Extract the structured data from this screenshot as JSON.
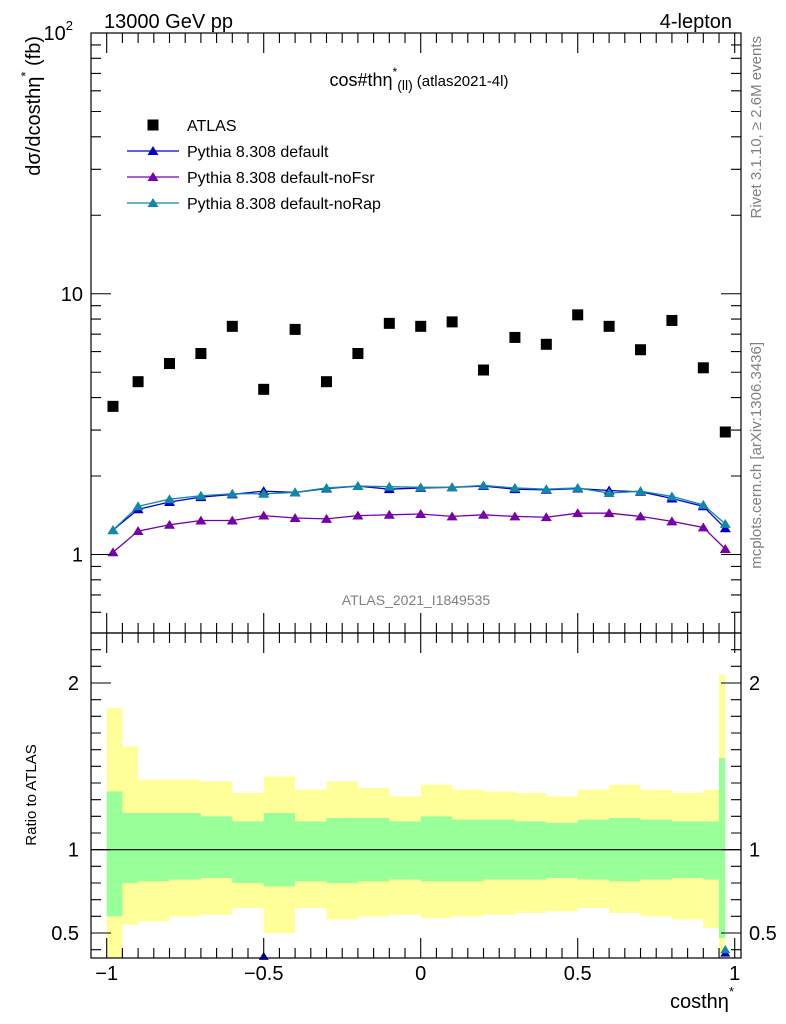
{
  "header": {
    "left": "13000 GeV pp",
    "right": "4-lepton"
  },
  "side_labels": {
    "rivet": "Rivet 3.1.10, ≥ 2.6M events",
    "mcplots": "mcplots.cern.ch [arXiv:1306.3436]"
  },
  "chart_data": [
    {
      "panel": "main",
      "type": "scatter",
      "title": "cos#thη* (ll) (atlas2021-4l)",
      "title_main": "cos#thη",
      "title_sup": "*",
      "title_sub": "(ll)",
      "title_tail": "(atlas2021-4l)",
      "ylabel": "dσ/dcosthη* (fb)",
      "ylabel_main": "dσ/dcosthη",
      "ylabel_sup": "*",
      "ylabel_tail": " (fb)",
      "xlabel": "costhη*",
      "xlabel_main": "costhη",
      "xlabel_sup": "*",
      "xlim": [
        -1.05,
        1.02
      ],
      "ylim": [
        0.5,
        100
      ],
      "yscale": "log",
      "y_tick_labels": [
        "1",
        "10",
        "10^2"
      ],
      "y_tick_values": [
        1,
        10,
        100
      ],
      "watermark": "ATLAS_2021_I1849535",
      "legend_position": "top-left",
      "bin_edges": [
        -1.0,
        -0.9,
        -0.8,
        -0.7,
        -0.6,
        -0.5,
        -0.4,
        -0.3,
        -0.2,
        -0.1,
        0.0,
        0.1,
        0.2,
        0.3,
        0.4,
        0.5,
        0.6,
        0.7,
        0.8,
        0.9,
        0.95,
        0.97
      ],
      "x": [
        -0.98,
        -0.9,
        -0.8,
        -0.7,
        -0.6,
        -0.5,
        -0.4,
        -0.3,
        -0.2,
        -0.1,
        0.0,
        0.1,
        0.2,
        0.3,
        0.4,
        0.5,
        0.6,
        0.7,
        0.8,
        0.9,
        0.97
      ],
      "series": [
        {
          "name": "ATLAS",
          "marker": "square",
          "color": "#000000",
          "values": [
            3.7,
            4.6,
            5.4,
            5.9,
            7.5,
            4.3,
            7.3,
            4.6,
            5.9,
            7.7,
            7.5,
            7.8,
            5.1,
            6.8,
            6.4,
            8.3,
            7.5,
            6.1,
            7.9,
            5.2,
            2.95
          ]
        },
        {
          "name": "Pythia 8.308 default",
          "marker": "triangle",
          "color": "#0000cc",
          "values": [
            1.24,
            1.49,
            1.59,
            1.66,
            1.7,
            1.75,
            1.73,
            1.79,
            1.83,
            1.78,
            1.8,
            1.81,
            1.83,
            1.78,
            1.77,
            1.79,
            1.76,
            1.74,
            1.64,
            1.53,
            1.26
          ]
        },
        {
          "name": "Pythia 8.308 default-noFsr",
          "marker": "triangle",
          "color": "#7700aa",
          "values": [
            1.02,
            1.23,
            1.3,
            1.35,
            1.35,
            1.41,
            1.38,
            1.37,
            1.41,
            1.42,
            1.43,
            1.4,
            1.42,
            1.4,
            1.39,
            1.44,
            1.44,
            1.4,
            1.34,
            1.27,
            1.05
          ]
        },
        {
          "name": "Pythia 8.308 default-noRap",
          "marker": "triangle",
          "color": "#1188aa",
          "values": [
            1.24,
            1.53,
            1.63,
            1.68,
            1.71,
            1.71,
            1.73,
            1.8,
            1.83,
            1.82,
            1.81,
            1.81,
            1.84,
            1.8,
            1.78,
            1.8,
            1.72,
            1.75,
            1.67,
            1.55,
            1.31
          ]
        }
      ]
    },
    {
      "panel": "ratio",
      "type": "area",
      "ylabel": "Ratio to ATLAS",
      "xlim": [
        -1.05,
        1.02
      ],
      "ylim": [
        0.35,
        2.3
      ],
      "y_tick_labels": [
        "0.5",
        "1",
        "2"
      ],
      "y_tick_values": [
        0.5,
        1,
        2
      ],
      "x_tick_labels": [
        "−1",
        "−0.5",
        "0",
        "0.5",
        "1"
      ],
      "x_tick_values": [
        -1,
        -0.5,
        0,
        0.5,
        1
      ],
      "bin_edges": [
        -1.0,
        -0.95,
        -0.9,
        -0.8,
        -0.7,
        -0.6,
        -0.5,
        -0.4,
        -0.3,
        -0.2,
        -0.1,
        0.0,
        0.1,
        0.2,
        0.3,
        0.4,
        0.5,
        0.6,
        0.7,
        0.8,
        0.9,
        0.95,
        0.97
      ],
      "yellow_band": {
        "upper": [
          1.85,
          1.62,
          1.42,
          1.42,
          1.41,
          1.34,
          1.44,
          1.36,
          1.41,
          1.37,
          1.32,
          1.39,
          1.36,
          1.35,
          1.34,
          1.32,
          1.36,
          1.39,
          1.36,
          1.34,
          1.36,
          2.05
        ],
        "lower": [
          0.3,
          0.55,
          0.57,
          0.6,
          0.61,
          0.65,
          0.5,
          0.65,
          0.58,
          0.6,
          0.61,
          0.59,
          0.6,
          0.61,
          0.62,
          0.63,
          0.65,
          0.62,
          0.6,
          0.58,
          0.53,
          0.3
        ]
      },
      "green_band": {
        "upper": [
          1.35,
          1.22,
          1.22,
          1.22,
          1.2,
          1.17,
          1.22,
          1.17,
          1.19,
          1.19,
          1.17,
          1.2,
          1.18,
          1.18,
          1.17,
          1.16,
          1.18,
          1.19,
          1.18,
          1.17,
          1.17,
          1.55
        ],
        "lower": [
          0.6,
          0.8,
          0.81,
          0.82,
          0.83,
          0.8,
          0.78,
          0.81,
          0.8,
          0.81,
          0.82,
          0.81,
          0.81,
          0.82,
          0.82,
          0.83,
          0.82,
          0.81,
          0.82,
          0.83,
          0.82,
          0.47
        ]
      },
      "visible_markers": [
        {
          "x": -0.5,
          "y": 0.36,
          "color": "#0000cc"
        },
        {
          "x": 0.97,
          "y": 0.38,
          "color": "#0000cc"
        },
        {
          "x": 0.97,
          "y": 0.4,
          "color": "#1188aa"
        }
      ]
    }
  ]
}
